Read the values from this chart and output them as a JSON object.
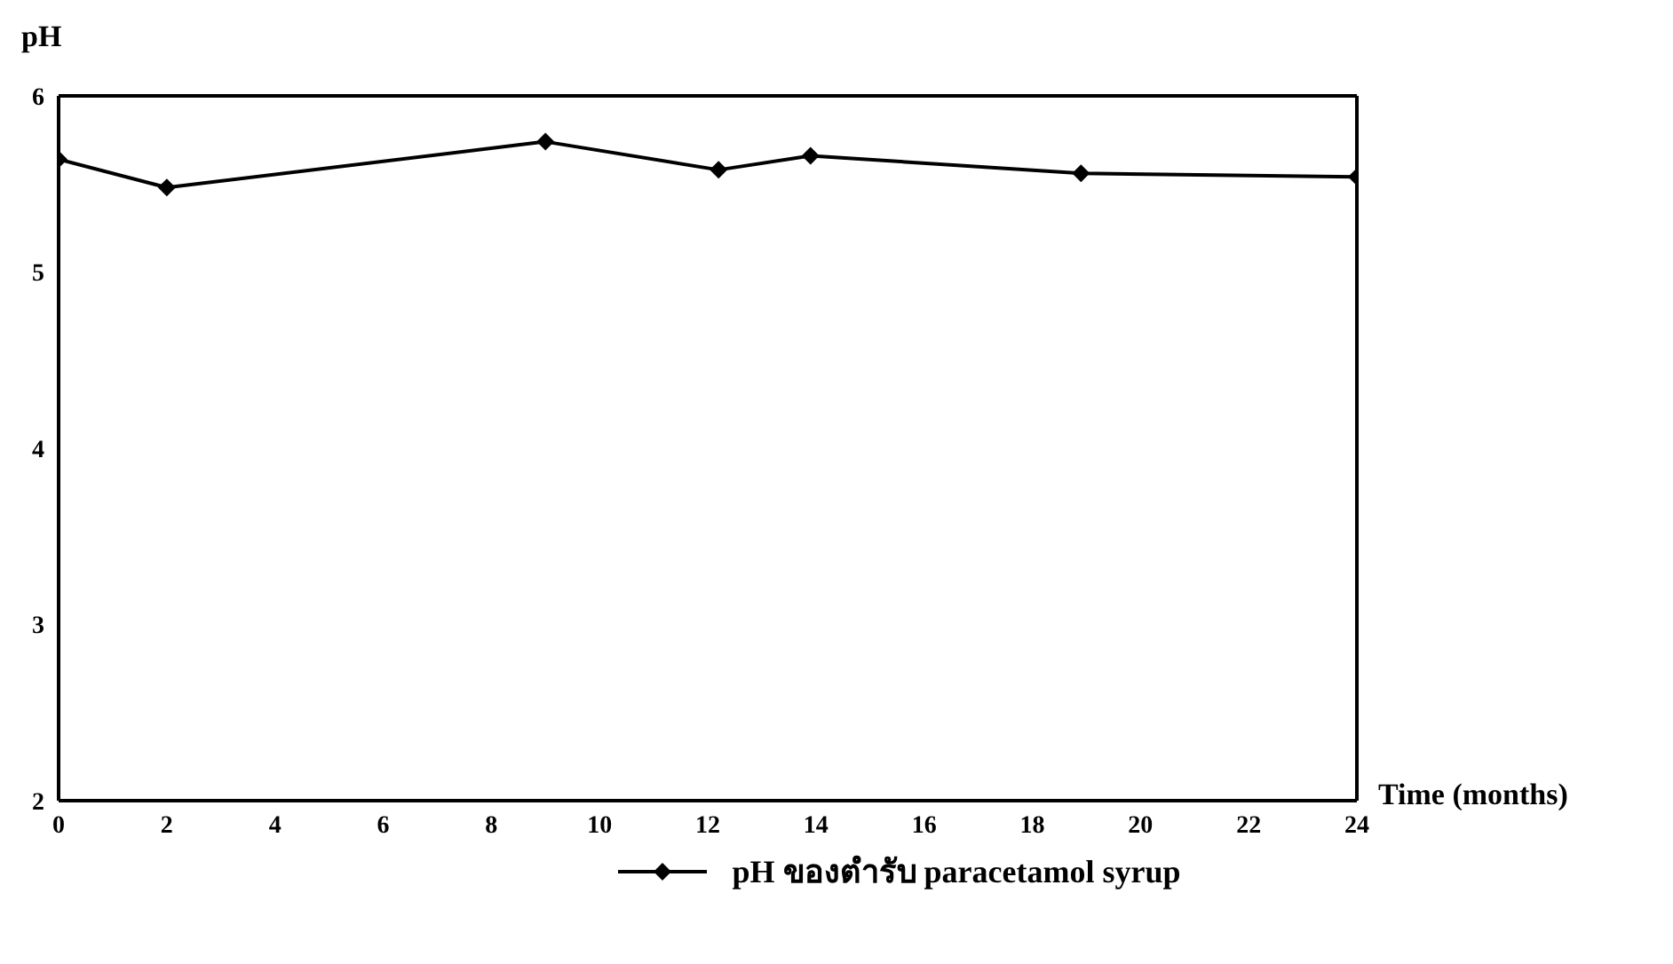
{
  "chart_data": {
    "type": "line",
    "xlabel": "Time (months)",
    "ylabel": "pH",
    "x": [
      0,
      2,
      9,
      12.2,
      13.9,
      18.9,
      24
    ],
    "series": [
      {
        "name": "pH ของตำรับ paracetamol syrup",
        "color": "#000000",
        "values": [
          5.64,
          5.48,
          5.74,
          5.58,
          5.66,
          5.56,
          5.54
        ]
      }
    ],
    "xlim": [
      0,
      24
    ],
    "xticks": [
      0,
      2,
      4,
      6,
      8,
      10,
      12,
      14,
      16,
      18,
      20,
      22,
      24
    ],
    "ylim": [
      2,
      6
    ],
    "yticks": [
      2,
      3,
      4,
      5,
      6
    ],
    "grid": false,
    "legend": "bottom",
    "marker": "diamond",
    "line_style": "solid"
  }
}
